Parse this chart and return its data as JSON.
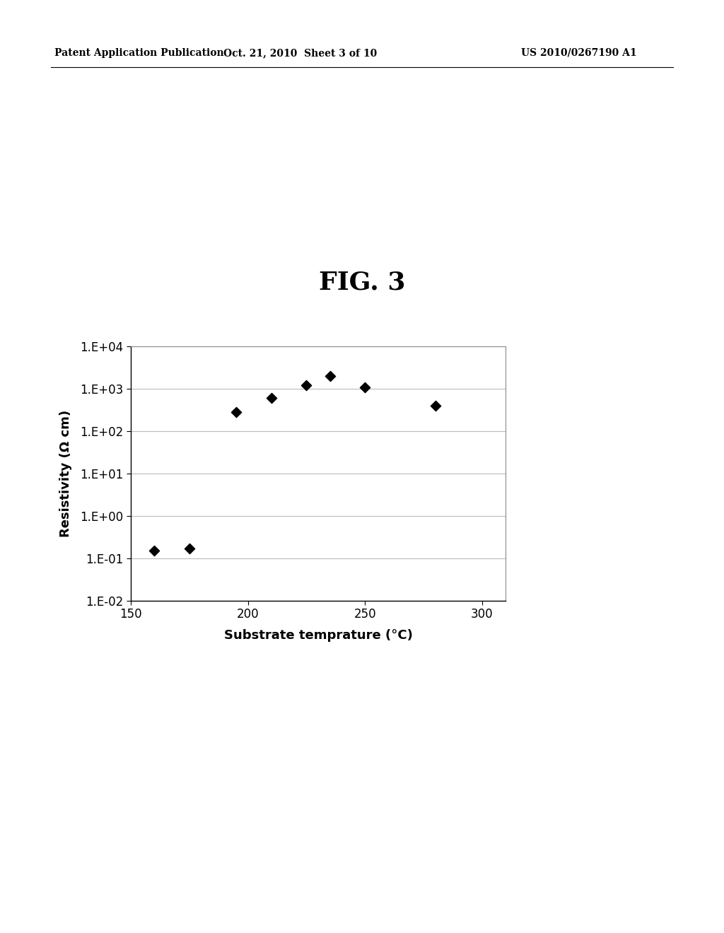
{
  "title": "FIG. 3",
  "xlabel": "Substrate temprature (°C)",
  "ylabel": "Resistivity (Ω cm)",
  "x_data": [
    160,
    175,
    195,
    210,
    225,
    235,
    250,
    280
  ],
  "y_data": [
    0.15,
    0.17,
    280,
    600,
    1200,
    2000,
    1100,
    400
  ],
  "xlim": [
    150,
    310
  ],
  "ylim_log": [
    -2,
    4
  ],
  "xticks": [
    150,
    200,
    250,
    300
  ],
  "ytick_labels": [
    "1.E-02",
    "1.E-01",
    "1.E+00",
    "1.E+01",
    "1.E+02",
    "1.E+03",
    "1.E+04"
  ],
  "ytick_values": [
    0.01,
    0.1,
    1.0,
    10.0,
    100.0,
    1000.0,
    10000.0
  ],
  "marker_color": "#000000",
  "marker_size": 9,
  "background_color": "#ffffff",
  "header_left": "Patent Application Publication",
  "header_center": "Oct. 21, 2010  Sheet 3 of 10",
  "header_right": "US 2010/0267190 A1",
  "grid_color": "#bbbbbb",
  "spine_color": "#888888"
}
